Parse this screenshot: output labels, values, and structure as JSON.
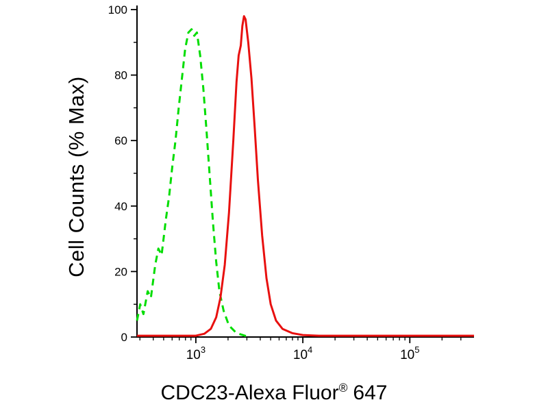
{
  "chart_data": {
    "type": "line",
    "title": {
      "main": "CDC23-Alexa Fluor",
      "registered": "®",
      "suffix": "647"
    },
    "ylabel": "Cell Counts (% Max)",
    "legend": "none",
    "grid": false,
    "colors": {
      "axis": "#000000",
      "background": "#ffffff"
    },
    "x_axis": {
      "scale": "log10",
      "base": "10",
      "log_range": [
        2.45,
        5.6
      ],
      "major_tick_exponents": [
        3,
        4,
        5
      ]
    },
    "y_axis": {
      "range": [
        0,
        100
      ],
      "major_ticks": [
        0,
        20,
        40,
        60,
        80,
        100
      ],
      "minor_step": 10
    },
    "series": [
      {
        "id": "green-dashed",
        "name": "green dashed histogram (control)",
        "color": "#00dd00",
        "style": "dashed",
        "peak": {
          "logx": 2.96,
          "y": 94
        },
        "points_logx_y": [
          [
            2.45,
            5
          ],
          [
            2.48,
            10
          ],
          [
            2.51,
            7
          ],
          [
            2.55,
            14
          ],
          [
            2.58,
            12
          ],
          [
            2.62,
            22
          ],
          [
            2.65,
            27
          ],
          [
            2.68,
            25
          ],
          [
            2.72,
            36
          ],
          [
            2.75,
            43
          ],
          [
            2.78,
            52
          ],
          [
            2.81,
            60
          ],
          [
            2.84,
            70
          ],
          [
            2.87,
            79
          ],
          [
            2.9,
            88
          ],
          [
            2.93,
            93
          ],
          [
            2.96,
            94
          ],
          [
            2.985,
            92
          ],
          [
            3.01,
            93
          ],
          [
            3.04,
            86
          ],
          [
            3.07,
            76
          ],
          [
            3.1,
            63
          ],
          [
            3.13,
            49
          ],
          [
            3.16,
            35
          ],
          [
            3.19,
            23
          ],
          [
            3.22,
            14
          ],
          [
            3.26,
            8
          ],
          [
            3.31,
            3.5
          ],
          [
            3.38,
            1.2
          ],
          [
            3.47,
            0.3
          ]
        ]
      },
      {
        "id": "red-solid",
        "name": "red solid histogram (CDC23 stained)",
        "color": "#e8100f",
        "style": "solid",
        "peak": {
          "logx": 3.45,
          "y": 98
        },
        "points_logx_y": [
          [
            2.45,
            0.4
          ],
          [
            3.0,
            0.4
          ],
          [
            3.08,
            1
          ],
          [
            3.14,
            2.5
          ],
          [
            3.19,
            6
          ],
          [
            3.23,
            12
          ],
          [
            3.27,
            22
          ],
          [
            3.31,
            38
          ],
          [
            3.35,
            60
          ],
          [
            3.38,
            78
          ],
          [
            3.4,
            86
          ],
          [
            3.42,
            89
          ],
          [
            3.435,
            95
          ],
          [
            3.45,
            98
          ],
          [
            3.465,
            97
          ],
          [
            3.49,
            90
          ],
          [
            3.52,
            79
          ],
          [
            3.55,
            64
          ],
          [
            3.58,
            48
          ],
          [
            3.62,
            31
          ],
          [
            3.66,
            18
          ],
          [
            3.7,
            10
          ],
          [
            3.75,
            5
          ],
          [
            3.81,
            2.5
          ],
          [
            3.9,
            1.2
          ],
          [
            4.0,
            0.6
          ],
          [
            4.15,
            0.4
          ],
          [
            5.6,
            0.4
          ]
        ]
      }
    ]
  }
}
